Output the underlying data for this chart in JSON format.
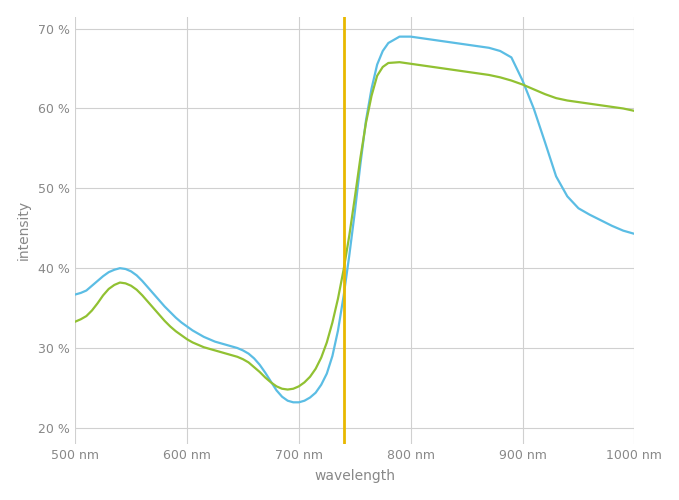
{
  "title": "",
  "xlabel": "wavelength",
  "ylabel": "intensity",
  "xlim": [
    500,
    1000
  ],
  "ylim": [
    0.18,
    0.715
  ],
  "yticks": [
    0.2,
    0.3,
    0.4,
    0.5,
    0.6,
    0.7
  ],
  "ytick_labels": [
    "20 %",
    "30 %",
    "40 %",
    "50 %",
    "60 %",
    "70 %"
  ],
  "xticks": [
    500,
    600,
    700,
    800,
    900,
    1000
  ],
  "xtick_labels": [
    "500 nm",
    "600 nm",
    "700 nm",
    "800 nm",
    "900 nm",
    "1000 nm"
  ],
  "vline_x": 740,
  "vline_color": "#e8b800",
  "blue_color": "#5bbde4",
  "green_color": "#91c132",
  "background_color": "#ffffff",
  "grid_color": "#d0d0d0",
  "blue_x": [
    500,
    505,
    510,
    515,
    520,
    525,
    530,
    535,
    540,
    545,
    550,
    555,
    560,
    565,
    570,
    575,
    580,
    585,
    590,
    595,
    600,
    605,
    610,
    615,
    620,
    625,
    630,
    635,
    640,
    645,
    650,
    655,
    660,
    665,
    670,
    675,
    680,
    685,
    690,
    695,
    700,
    705,
    710,
    715,
    720,
    725,
    730,
    735,
    740,
    745,
    750,
    755,
    760,
    765,
    770,
    775,
    780,
    790,
    800,
    810,
    820,
    830,
    840,
    850,
    860,
    870,
    880,
    890,
    900,
    910,
    920,
    930,
    940,
    950,
    960,
    970,
    980,
    990,
    1000
  ],
  "blue_y": [
    0.367,
    0.369,
    0.372,
    0.378,
    0.384,
    0.39,
    0.395,
    0.398,
    0.4,
    0.399,
    0.396,
    0.391,
    0.384,
    0.376,
    0.368,
    0.36,
    0.352,
    0.345,
    0.338,
    0.332,
    0.327,
    0.322,
    0.318,
    0.314,
    0.311,
    0.308,
    0.306,
    0.304,
    0.302,
    0.3,
    0.297,
    0.293,
    0.287,
    0.279,
    0.269,
    0.258,
    0.247,
    0.239,
    0.234,
    0.232,
    0.232,
    0.234,
    0.238,
    0.244,
    0.254,
    0.268,
    0.29,
    0.322,
    0.365,
    0.415,
    0.47,
    0.53,
    0.585,
    0.625,
    0.655,
    0.672,
    0.682,
    0.69,
    0.69,
    0.688,
    0.686,
    0.684,
    0.682,
    0.68,
    0.678,
    0.676,
    0.672,
    0.664,
    0.635,
    0.6,
    0.558,
    0.515,
    0.49,
    0.475,
    0.467,
    0.46,
    0.453,
    0.447,
    0.443
  ],
  "green_x": [
    500,
    505,
    510,
    515,
    520,
    525,
    530,
    535,
    540,
    545,
    550,
    555,
    560,
    565,
    570,
    575,
    580,
    585,
    590,
    595,
    600,
    605,
    610,
    615,
    620,
    625,
    630,
    635,
    640,
    645,
    650,
    655,
    660,
    665,
    670,
    675,
    680,
    685,
    690,
    695,
    700,
    705,
    710,
    715,
    720,
    725,
    730,
    735,
    740,
    745,
    750,
    755,
    760,
    765,
    770,
    775,
    780,
    790,
    800,
    810,
    820,
    830,
    840,
    850,
    860,
    870,
    880,
    890,
    900,
    910,
    920,
    930,
    940,
    950,
    960,
    970,
    980,
    990,
    1000
  ],
  "green_y": [
    0.333,
    0.336,
    0.34,
    0.347,
    0.356,
    0.366,
    0.374,
    0.379,
    0.382,
    0.381,
    0.378,
    0.373,
    0.366,
    0.358,
    0.35,
    0.342,
    0.334,
    0.327,
    0.321,
    0.316,
    0.311,
    0.307,
    0.304,
    0.301,
    0.299,
    0.297,
    0.295,
    0.293,
    0.291,
    0.289,
    0.286,
    0.282,
    0.276,
    0.27,
    0.263,
    0.257,
    0.252,
    0.249,
    0.248,
    0.249,
    0.252,
    0.257,
    0.264,
    0.274,
    0.288,
    0.307,
    0.332,
    0.362,
    0.398,
    0.44,
    0.488,
    0.538,
    0.582,
    0.616,
    0.641,
    0.652,
    0.657,
    0.658,
    0.656,
    0.654,
    0.652,
    0.65,
    0.648,
    0.646,
    0.644,
    0.642,
    0.639,
    0.635,
    0.63,
    0.624,
    0.618,
    0.613,
    0.61,
    0.608,
    0.606,
    0.604,
    0.602,
    0.6,
    0.597
  ]
}
